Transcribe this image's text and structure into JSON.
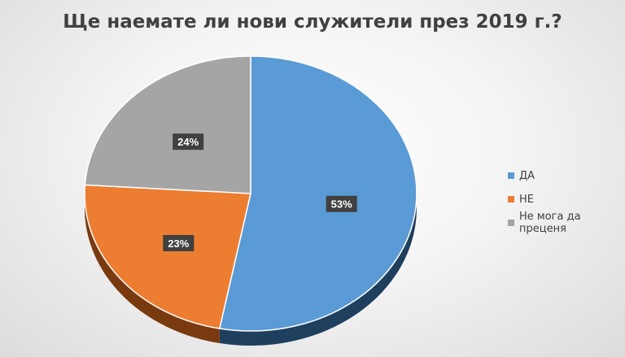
{
  "chart_data": {
    "type": "pie",
    "title": "Ще наемате ли нови служители през 2019 г.?",
    "categories": [
      "ДА",
      "НЕ",
      "Не мога да преценя"
    ],
    "values": [
      53,
      23,
      24
    ],
    "data_labels": [
      "53%",
      "23%",
      "24%"
    ],
    "unit": "%",
    "style": "3d",
    "legend_position": "right",
    "colors": [
      "#5b9bd5",
      "#ed7d31",
      "#a5a5a5"
    ],
    "side_colors": [
      "#1f3f5e",
      "#7a3a0f",
      "#6e6e6e"
    ]
  }
}
